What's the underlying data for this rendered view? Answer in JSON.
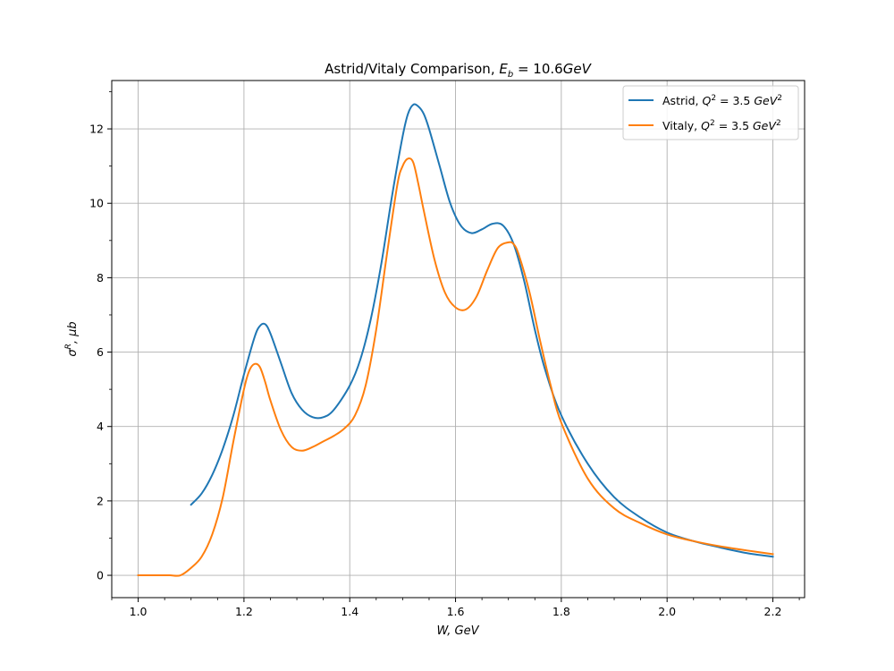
{
  "chart_data": {
    "type": "line",
    "title": "Astrid/Vitaly Comparison, E_b = 10.6GeV",
    "xlabel": "W, GeV",
    "ylabel": "σ^R, μb",
    "xlim": [
      0.95,
      2.26
    ],
    "ylim": [
      -0.6,
      13.3
    ],
    "xticks": [
      "1.0",
      "1.2",
      "1.4",
      "1.6",
      "1.8",
      "2.0",
      "2.2"
    ],
    "yticks": [
      "0",
      "2",
      "4",
      "6",
      "8",
      "10",
      "12"
    ],
    "grid": true,
    "legend_position": "top-right",
    "series": [
      {
        "name": "Astrid, Q^2 = 3.5 GeV^2",
        "color": "#1f77b4",
        "x": [
          1.1,
          1.12,
          1.14,
          1.16,
          1.18,
          1.2,
          1.22,
          1.23,
          1.24,
          1.25,
          1.27,
          1.29,
          1.31,
          1.33,
          1.35,
          1.37,
          1.4,
          1.42,
          1.44,
          1.46,
          1.48,
          1.5,
          1.51,
          1.52,
          1.53,
          1.54,
          1.55,
          1.57,
          1.59,
          1.61,
          1.63,
          1.65,
          1.67,
          1.69,
          1.71,
          1.73,
          1.75,
          1.77,
          1.8,
          1.85,
          1.9,
          1.95,
          2.0,
          2.05,
          2.1,
          2.15,
          2.2
        ],
        "y": [
          1.9,
          2.2,
          2.7,
          3.4,
          4.3,
          5.4,
          6.4,
          6.7,
          6.75,
          6.5,
          5.7,
          4.9,
          4.45,
          4.25,
          4.25,
          4.45,
          5.1,
          5.8,
          6.9,
          8.4,
          10.2,
          11.8,
          12.4,
          12.65,
          12.6,
          12.4,
          12.0,
          11.0,
          10.0,
          9.4,
          9.2,
          9.3,
          9.45,
          9.4,
          8.9,
          7.9,
          6.6,
          5.5,
          4.3,
          3.0,
          2.1,
          1.55,
          1.15,
          0.92,
          0.75,
          0.6,
          0.5
        ]
      },
      {
        "name": "Vitaly, Q^2 = 3.5 GeV^2",
        "color": "#ff7f0e",
        "x": [
          1.0,
          1.02,
          1.04,
          1.06,
          1.08,
          1.1,
          1.12,
          1.14,
          1.16,
          1.18,
          1.2,
          1.21,
          1.22,
          1.23,
          1.24,
          1.25,
          1.27,
          1.29,
          1.31,
          1.33,
          1.35,
          1.37,
          1.39,
          1.41,
          1.43,
          1.45,
          1.47,
          1.49,
          1.5,
          1.51,
          1.52,
          1.53,
          1.54,
          1.56,
          1.58,
          1.6,
          1.62,
          1.64,
          1.66,
          1.68,
          1.7,
          1.71,
          1.72,
          1.74,
          1.76,
          1.78,
          1.8,
          1.85,
          1.9,
          1.95,
          2.0,
          2.05,
          2.1,
          2.15,
          2.2
        ],
        "y": [
          0,
          0,
          0,
          0,
          0,
          0.2,
          0.5,
          1.1,
          2.1,
          3.6,
          5.0,
          5.5,
          5.68,
          5.6,
          5.2,
          4.7,
          3.9,
          3.45,
          3.35,
          3.45,
          3.6,
          3.75,
          3.95,
          4.3,
          5.1,
          6.6,
          8.6,
          10.5,
          11.0,
          11.2,
          11.1,
          10.5,
          9.8,
          8.5,
          7.6,
          7.2,
          7.15,
          7.5,
          8.2,
          8.8,
          8.95,
          8.9,
          8.6,
          7.6,
          6.3,
          5.1,
          4.1,
          2.6,
          1.8,
          1.4,
          1.1,
          0.92,
          0.78,
          0.67,
          0.57
        ]
      }
    ]
  }
}
